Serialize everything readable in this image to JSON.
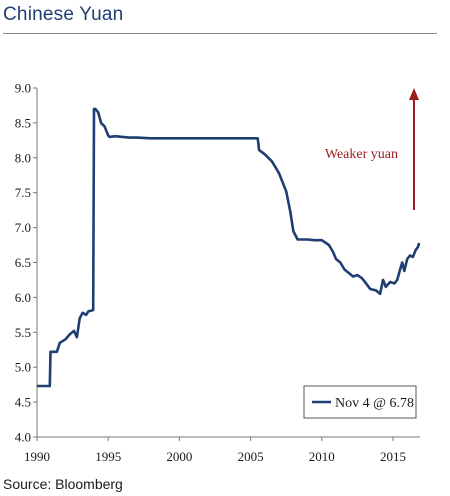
{
  "header": {
    "title": "Chinese Yuan"
  },
  "footer": {
    "source": "Source: Bloomberg"
  },
  "colors": {
    "series": "#1f3e72",
    "annotation": "#9b1c1c",
    "axis": "#7a7a7a"
  },
  "chart_data": {
    "type": "line",
    "title": "Chinese Yuan",
    "xlabel": "",
    "ylabel": "",
    "xlim": [
      1990,
      2016.9
    ],
    "ylim": [
      4.0,
      9.0
    ],
    "x_ticks": [
      1990,
      1995,
      2000,
      2005,
      2010,
      2015
    ],
    "y_ticks": [
      9.0,
      8.5,
      8.0,
      7.5,
      7.0,
      6.5,
      6.0,
      5.5,
      5.0,
      4.5,
      4.0
    ],
    "y_tick_labels": [
      "9.0",
      "8.5",
      "8.0",
      "7.5",
      "7.0",
      "6.5",
      "6.0",
      "5.5",
      "5.0",
      "4.5",
      "4.0"
    ],
    "grid": false,
    "legend": {
      "position": "bottom-right",
      "label": "Nov 4 @ 6.78"
    },
    "annotation": {
      "text": "Weaker yuan",
      "arrow": "up"
    },
    "series": [
      {
        "name": "Nov 4 @ 6.78",
        "x": [
          1990.0,
          1990.05,
          1990.9,
          1990.95,
          1991.4,
          1991.6,
          1992.0,
          1992.3,
          1992.6,
          1992.8,
          1993.0,
          1993.2,
          1993.45,
          1993.6,
          1993.8,
          1993.95,
          1994.0,
          1994.1,
          1994.3,
          1994.5,
          1994.75,
          1995.0,
          1995.1,
          1995.5,
          1996.0,
          1996.5,
          1997.0,
          1998.0,
          1999.0,
          2000.0,
          2001.0,
          2002.0,
          2003.0,
          2004.0,
          2005.5,
          2005.6,
          2006.0,
          2006.5,
          2007.0,
          2007.5,
          2007.8,
          2008.0,
          2008.3,
          2008.5,
          2009.0,
          2009.5,
          2010.0,
          2010.5,
          2010.8,
          2011.0,
          2011.3,
          2011.6,
          2011.9,
          2012.2,
          2012.5,
          2012.8,
          2013.0,
          2013.4,
          2013.8,
          2014.1,
          2014.3,
          2014.5,
          2014.8,
          2015.1,
          2015.3,
          2015.5,
          2015.65,
          2015.8,
          2016.0,
          2016.2,
          2016.4,
          2016.6,
          2016.75,
          2016.84
        ],
        "values": [
          4.73,
          4.73,
          4.73,
          5.22,
          5.22,
          5.35,
          5.4,
          5.47,
          5.52,
          5.43,
          5.7,
          5.78,
          5.75,
          5.8,
          5.81,
          5.82,
          8.7,
          8.7,
          8.65,
          8.5,
          8.45,
          8.32,
          8.3,
          8.31,
          8.3,
          8.29,
          8.29,
          8.28,
          8.28,
          8.28,
          8.28,
          8.28,
          8.28,
          8.28,
          8.28,
          8.11,
          8.05,
          7.95,
          7.78,
          7.52,
          7.22,
          6.95,
          6.83,
          6.83,
          6.83,
          6.82,
          6.82,
          6.75,
          6.65,
          6.55,
          6.5,
          6.4,
          6.35,
          6.3,
          6.32,
          6.28,
          6.23,
          6.12,
          6.1,
          6.05,
          6.25,
          6.15,
          6.22,
          6.2,
          6.25,
          6.4,
          6.5,
          6.38,
          6.55,
          6.6,
          6.58,
          6.68,
          6.72,
          6.78
        ]
      }
    ]
  }
}
